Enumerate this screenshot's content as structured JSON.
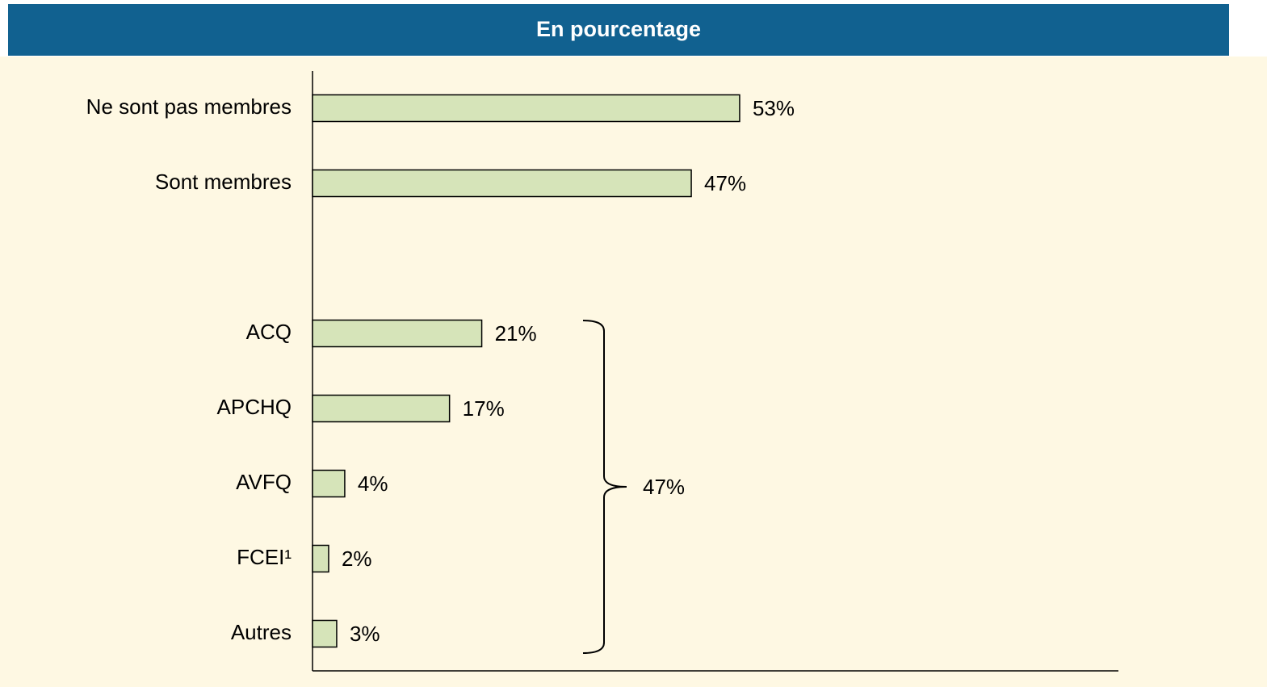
{
  "chart_data": {
    "type": "barh",
    "title": "En pourcentage",
    "categories": [
      "Ne sont pas membres",
      "Sont membres",
      null,
      "ACQ",
      "APCHQ",
      "AVFQ",
      "FCEI¹",
      "Autres"
    ],
    "values": [
      53,
      47,
      null,
      21,
      17,
      4,
      2,
      3
    ],
    "value_labels": [
      "53%",
      "47%",
      null,
      "21%",
      "17%",
      "4%",
      "2%",
      "3%"
    ],
    "color": "#d6e4b9",
    "xlim": [
      0,
      100
    ],
    "annotation": "47%"
  }
}
